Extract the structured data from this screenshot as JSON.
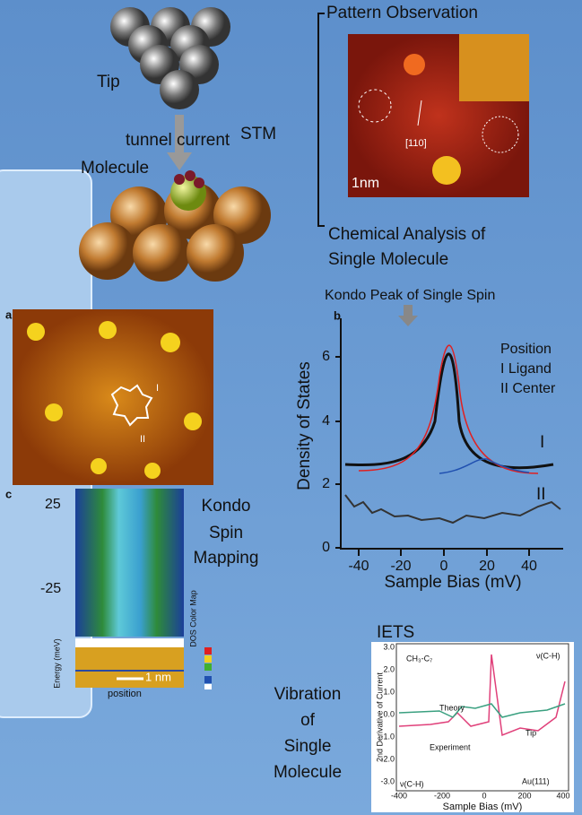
{
  "stm": {
    "tip": "Tip",
    "tunnel_current": "tunnel current",
    "stm": "STM",
    "molecule": "Molecule"
  },
  "pattern": {
    "title": "Pattern Observation",
    "direction": "[110]",
    "scale": "1nm",
    "analysis_line1": "Chemical Analysis of",
    "analysis_line2": "Single Molecule"
  },
  "panel_a": {
    "letter": "a",
    "site1": "I",
    "site2": "II"
  },
  "panel_c": {
    "letter": "c",
    "yticks": [
      "25",
      "-25"
    ],
    "ylabel": "Energy (meV)",
    "colormap": "DOS Color Map",
    "scale": "1 nm",
    "xlabel": "position",
    "caption": [
      "Kondo",
      "Spin",
      "Mapping"
    ]
  },
  "panel_b": {
    "heading": "Kondo Peak of Single Spin",
    "letter": "b",
    "ylabel": "Density of States",
    "xlabel": "Sample Bias (mV)",
    "yticks": [
      "0",
      "2",
      "4",
      "6"
    ],
    "xticks": [
      "-40",
      "-20",
      "0",
      "20",
      "40"
    ],
    "legend": [
      "Position",
      "I Ligand",
      "II Center"
    ],
    "curve1": "I",
    "curve2": "II"
  },
  "iets": {
    "heading": "IETS",
    "caption": [
      "Vibration",
      "of",
      "Single",
      "Molecule"
    ],
    "molecule": "CH₃-C₇",
    "mode_right": "ν(C-H)",
    "mode_left": "ν(C-H)",
    "theory": "Theory",
    "experiment": "Experiment",
    "tip": "Tip",
    "substrate": "Au(111)",
    "ylabel": "2nd Derivative of Current",
    "xlabel": "Sample Bias (mV)",
    "yticks": [
      "3.0",
      "2.0",
      "1.0",
      "0.0",
      "-1.0",
      "-2.0",
      "-3.0"
    ],
    "xticks": [
      "-400",
      "-200",
      "0",
      "200",
      "400"
    ]
  }
}
